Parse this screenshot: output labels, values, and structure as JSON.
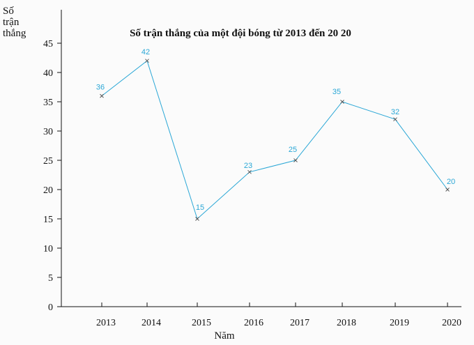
{
  "chart_data": {
    "type": "line",
    "title": "Số trận thắng của một đội bóng từ 2013 đến 20 20",
    "ylabel_lines": [
      "Số",
      "trận",
      "thắng"
    ],
    "xlabel": "Năm",
    "categories": [
      "2013",
      "2014",
      "2015",
      "2016",
      "2017",
      "2018",
      "2019",
      "2020"
    ],
    "series": [
      {
        "values": [
          36,
          42,
          15,
          23,
          25,
          35,
          32,
          20
        ],
        "data_labels": [
          "36",
          "42",
          "15",
          "23",
          "25",
          "35",
          "32",
          "20"
        ],
        "color": "#2aa7d6",
        "marker": "x"
      }
    ],
    "yticks": [
      0,
      5,
      10,
      15,
      20,
      25,
      30,
      35,
      40,
      45
    ],
    "ylim": [
      0,
      45
    ],
    "grid": false,
    "legend": "none"
  }
}
